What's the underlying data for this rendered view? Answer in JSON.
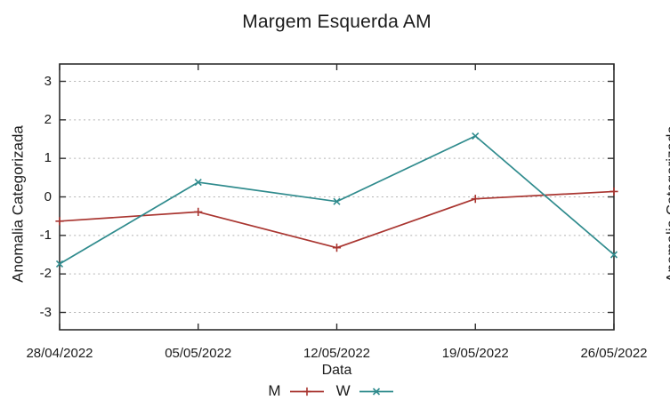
{
  "page": {
    "background": "#ffffff"
  },
  "chart": {
    "title": "Margem Esquerda AM",
    "xlabel": "Data",
    "ylabel": "Anomalia Categorizada"
  },
  "side_chart": {
    "ylabel": "Anomalia Categorizada",
    "note_visible_part": "left edge of rotated y-axis label of adjacent chart, clipped at screenshot right edge"
  },
  "chart_data": {
    "type": "line",
    "title": "Margem Esquerda AM",
    "xlabel": "Data",
    "ylabel": "Anomalia Categorizada",
    "categories": [
      "28/04/2022",
      "05/05/2022",
      "12/05/2022",
      "19/05/2022",
      "26/05/2022"
    ],
    "series": [
      {
        "name": "M",
        "color": "#a93530",
        "marker": "plus",
        "values": [
          -0.63,
          -0.39,
          -1.32,
          -0.05,
          0.14
        ]
      },
      {
        "name": "W",
        "color": "#2f8b8d",
        "marker": "cross",
        "values": [
          -1.74,
          0.38,
          -0.12,
          1.58,
          -1.5
        ]
      }
    ],
    "yticks": [
      -3,
      -2,
      -1,
      0,
      1,
      2,
      3
    ],
    "ylim": [
      -3.45,
      3.45
    ],
    "grid": true,
    "grid_style": "dotted",
    "grid_color": "#b2b2b2",
    "border_color": "#2e2e2e",
    "legend_position": "bottom-center"
  }
}
